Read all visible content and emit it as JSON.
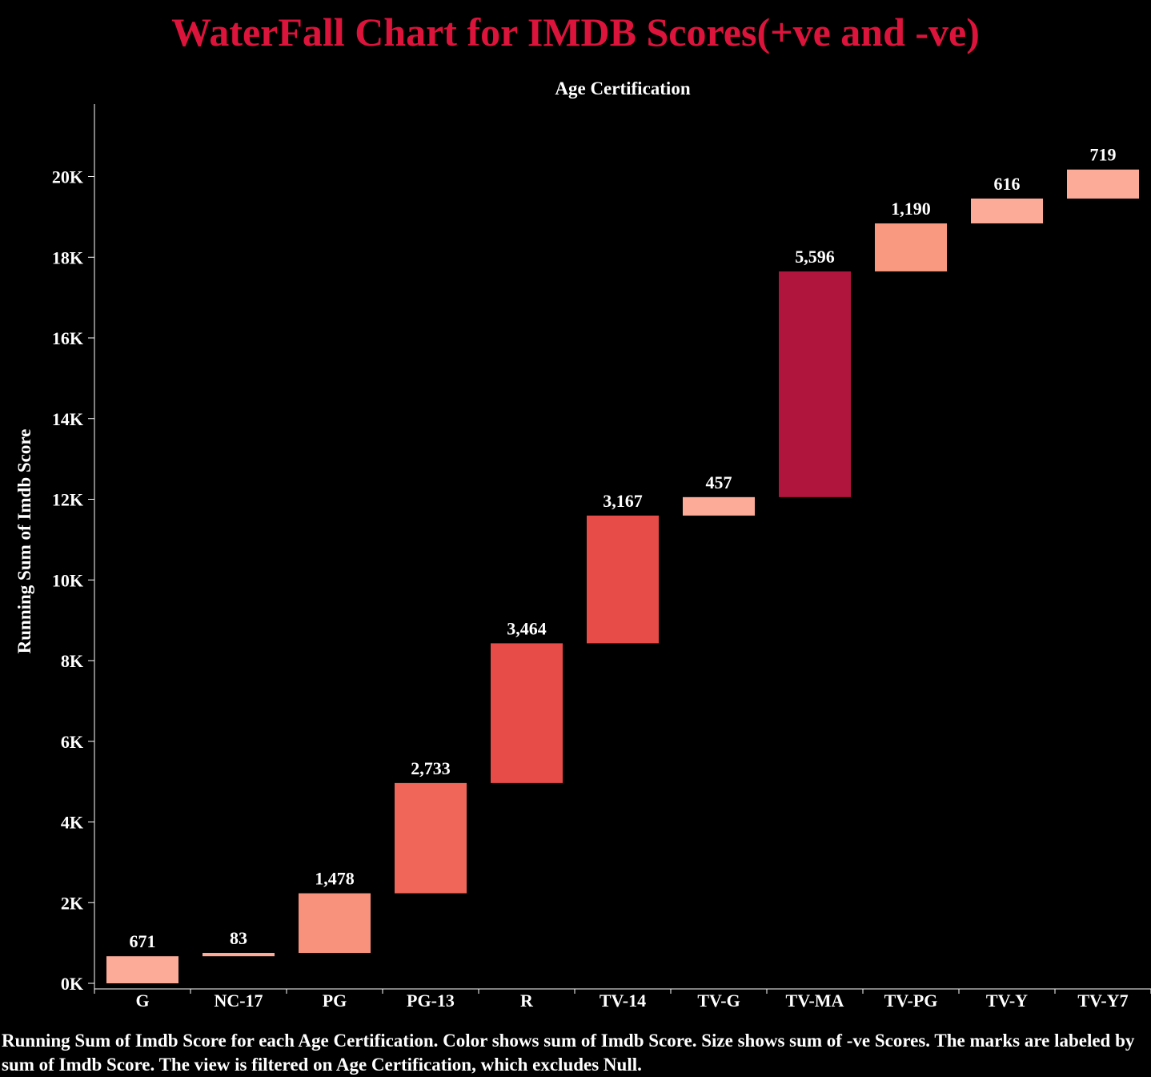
{
  "title": "WaterFall Chart for IMDB Scores(+ve and -ve)",
  "caption": "Running Sum of Imdb Score for each Age Certification.  Color shows sum of Imdb Score.  Size shows sum of -ve Scores.  The marks are labeled by sum of Imdb Score. The view is filtered on Age Certification, which excludes Null.",
  "colors": {
    "background": "#000000",
    "title": "#dc143c",
    "text": "#ffffff",
    "color_scale_low": "#fcab98",
    "color_scale_mid": "#e84c48",
    "color_scale_high": "#b0153e"
  },
  "chart_data": {
    "type": "waterfall",
    "title": "",
    "column_header": "Age Certification",
    "xlabel": "",
    "ylabel": "Running Sum of Imdb Score",
    "ylim": [
      0,
      21800
    ],
    "y_ticks": [
      0,
      2000,
      4000,
      6000,
      8000,
      10000,
      12000,
      14000,
      16000,
      18000,
      20000
    ],
    "y_tick_labels": [
      "0K",
      "2K",
      "4K",
      "6K",
      "8K",
      "10K",
      "12K",
      "14K",
      "16K",
      "18K",
      "20K"
    ],
    "categories": [
      "G",
      "NC-17",
      "PG",
      "PG-13",
      "R",
      "TV-14",
      "TV-G",
      "TV-MA",
      "TV-PG",
      "TV-Y",
      "TV-Y7"
    ],
    "values": [
      671,
      83,
      1478,
      2733,
      3464,
      3167,
      457,
      5596,
      1190,
      616,
      719
    ],
    "labels": [
      "671",
      "83",
      "1,478",
      "2,733",
      "3,464",
      "3,167",
      "457",
      "5,596",
      "1,190",
      "616",
      "719"
    ],
    "colors": [
      "#fcab98",
      "#fcab98",
      "#f9927c",
      "#f0675a",
      "#e84c48",
      "#e84c48",
      "#fcab98",
      "#b0153e",
      "#f9997f",
      "#fcab98",
      "#fcab98"
    ],
    "grid": false
  }
}
